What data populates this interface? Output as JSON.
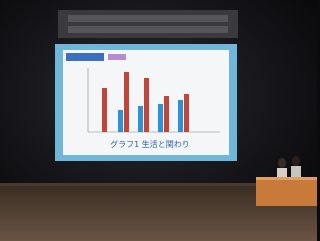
{
  "slide": {
    "caption": "グラフ1 生活と関わり"
  }
}
